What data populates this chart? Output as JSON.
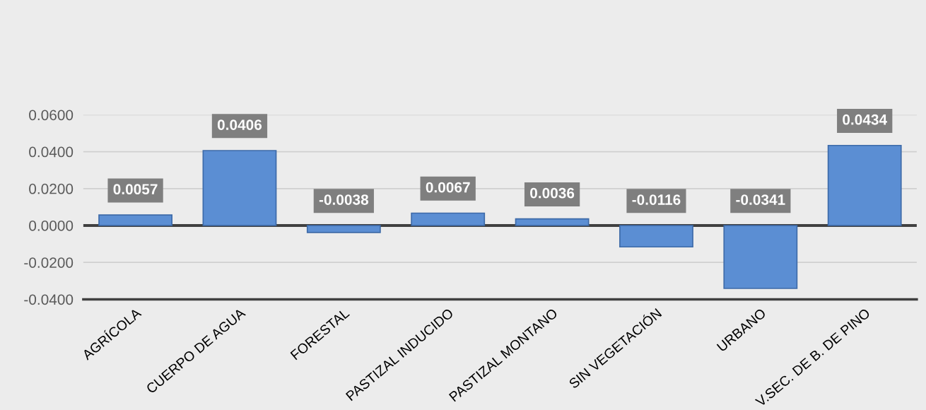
{
  "chart_data": {
    "type": "bar",
    "categories": [
      "AGRÍCOLA",
      "CUERPO DE AGUA",
      "FORESTAL",
      "PASTIZAL INDUCIDO",
      "PASTIZAL MONTANO",
      "SIN VEGETACIÓN",
      "URBANO",
      "V.SEC. DE B. DE PINO"
    ],
    "values": [
      0.0057,
      0.0406,
      -0.0038,
      0.0067,
      0.0036,
      -0.0116,
      -0.0341,
      0.0434
    ],
    "color": "#5b8ed3",
    "ylim": [
      -0.04,
      0.06
    ],
    "yticks": [
      {
        "value": -0.04,
        "label": "-0.0400"
      },
      {
        "value": -0.02,
        "label": "-0.0200"
      },
      {
        "value": 0,
        "label": "0.0000"
      },
      {
        "value": 0.02,
        "label": "0.0200"
      },
      {
        "value": 0.04,
        "label": "0.0400"
      },
      {
        "value": 0.06,
        "label": "0.0600"
      }
    ],
    "grid": "y",
    "data_labels": true,
    "ref_lines": [
      {
        "axis": "y",
        "value": 0,
        "color": "#404040"
      }
    ]
  }
}
